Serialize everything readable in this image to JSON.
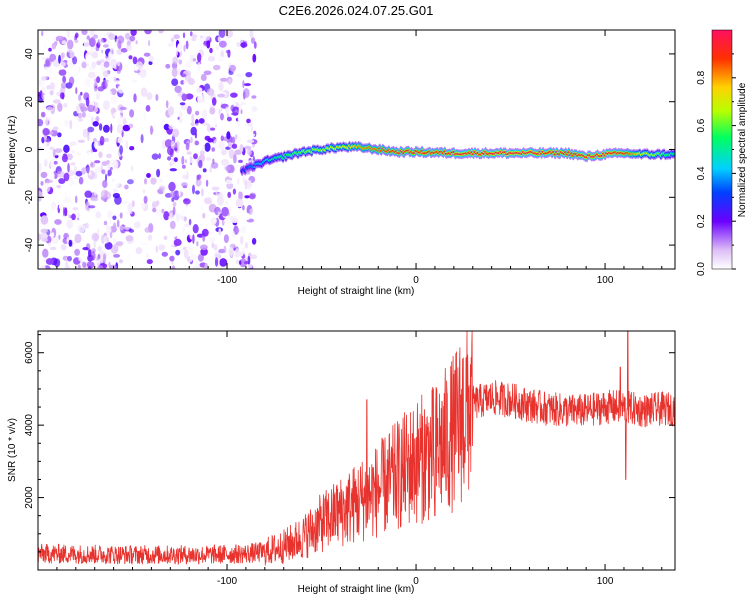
{
  "title": "C2E6.2026.024.07.25.G01",
  "colors": {
    "snr_line": "#e8322d",
    "axis": "#000000",
    "background": "#ffffff"
  },
  "chart_data": [
    {
      "type": "heatmap",
      "id": "spectrogram",
      "xlabel": "Height of straight line (km)",
      "ylabel": "Frequency (Hz)",
      "xlim": [
        -200,
        137
      ],
      "ylim": [
        -50,
        50
      ],
      "x_ticks": [
        -100,
        0,
        100
      ],
      "y_ticks": [
        -40,
        -20,
        0,
        20,
        40
      ],
      "colorbar": {
        "label": "Normalized spectral amplitude",
        "range": [
          0.0,
          1.0
        ],
        "ticks": [
          0.0,
          0.2,
          0.4,
          0.6,
          0.8
        ],
        "tick_labels": [
          "0.0",
          "0.2",
          "0.4",
          "0.6",
          "0.8"
        ]
      },
      "signal_ridge": {
        "x": [
          -92,
          -80,
          -70,
          -60,
          -50,
          -40,
          -30,
          -20,
          -10,
          0,
          20,
          40,
          60,
          80,
          90,
          100,
          110,
          120,
          137
        ],
        "freq": [
          -9,
          -5,
          -3,
          -1,
          0,
          1,
          1,
          0,
          -1,
          -1,
          -1.5,
          -1.5,
          -1.5,
          -1.5,
          -3,
          -2,
          -1.5,
          -2,
          -2
        ],
        "amplitude": [
          0.3,
          0.45,
          0.55,
          0.6,
          0.65,
          0.7,
          0.8,
          0.85,
          0.9,
          0.9,
          0.92,
          0.95,
          0.95,
          0.9,
          0.93,
          0.95,
          0.9,
          0.7,
          0.5
        ]
      }
    },
    {
      "type": "line",
      "id": "snr",
      "xlabel": "Height of straight line (km)",
      "ylabel": "SNR (10 * v/v)",
      "xlim": [
        -200,
        137
      ],
      "ylim": [
        0,
        6600
      ],
      "x_ticks": [
        -100,
        0,
        100
      ],
      "y_ticks": [
        2000,
        4000,
        6000
      ],
      "envelope": {
        "x": [
          -200,
          -150,
          -110,
          -90,
          -80,
          -70,
          -60,
          -50,
          -40,
          -30,
          -20,
          -10,
          0,
          10,
          20,
          25,
          30,
          40,
          50,
          60,
          70,
          80,
          90,
          100,
          110,
          120,
          130,
          137
        ],
        "mean": [
          450,
          420,
          420,
          450,
          500,
          650,
          900,
          1300,
          1600,
          1900,
          2200,
          2600,
          3000,
          3250,
          3800,
          4300,
          4600,
          4750,
          4700,
          4550,
          4450,
          4400,
          4400,
          4500,
          4500,
          4400,
          4450,
          4450
        ]
      },
      "spikes": [
        {
          "x": -42,
          "value": 2300
        },
        {
          "x": -26,
          "value": 4700
        },
        {
          "x": 10,
          "value": 1500
        },
        {
          "x": 108,
          "value": 5600
        },
        {
          "x": 111,
          "value": 2500
        },
        {
          "x": 112,
          "value": 6600
        }
      ]
    }
  ]
}
